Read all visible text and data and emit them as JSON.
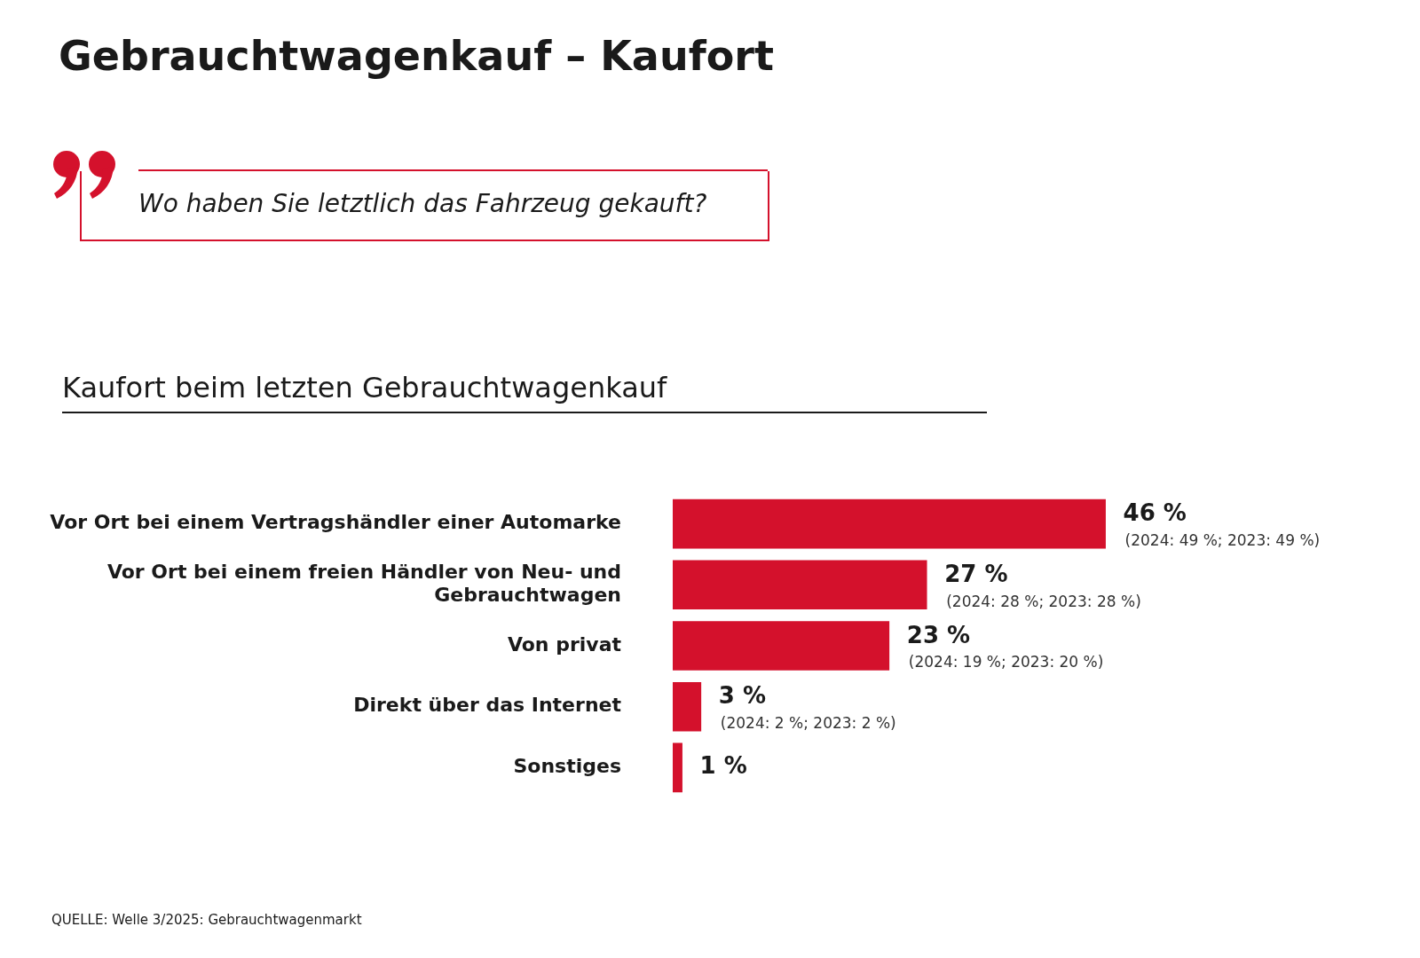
{
  "chart_data": {
    "type": "bar",
    "orientation": "horizontal",
    "title": "Gebrauchtwagenkauf – Kaufort",
    "subtitle": "Kaufort beim letzten Gebrauchtwagenkauf",
    "categories": [
      "Vor Ort bei einem Vertragshändler einer Automarke",
      "Vor Ort bei einem freien Händler von Neu- und Gebrauchtwagen",
      "Von privat",
      "Direkt über das Internet",
      "Sonstiges"
    ],
    "values": [
      46,
      27,
      23,
      3,
      1
    ],
    "value_labels": [
      "46 %",
      "27 %",
      "23 %",
      "3 %",
      "1 %"
    ],
    "color": "#d4112c",
    "annotations": [
      "Wo haben Sie letztlich das Fahrzeug gekauft?",
      "QUELLE: Welle 3/2025: Gebrauchtwagenmarkt",
      {
        "text": "(2024: 49 %; 2023: 49 %)",
        "x": 46,
        "y": "Vor Ort bei einem Vertragshändler einer Automarke"
      },
      {
        "text": "(2024: 28 %; 2023: 28 %)",
        "x": 27,
        "y": "Vor Ort bei einem freien Händler von Neu- und Gebrauchtwagen"
      },
      {
        "text": "(2024: 19 %; 2023: 20 %)",
        "x": 23,
        "y": "Von privat"
      },
      {
        "text": "(2024: 2 %; 2023: 2 %)",
        "x": 3,
        "y": "Direkt über das Internet"
      }
    ],
    "grid": false,
    "legend": false
  }
}
